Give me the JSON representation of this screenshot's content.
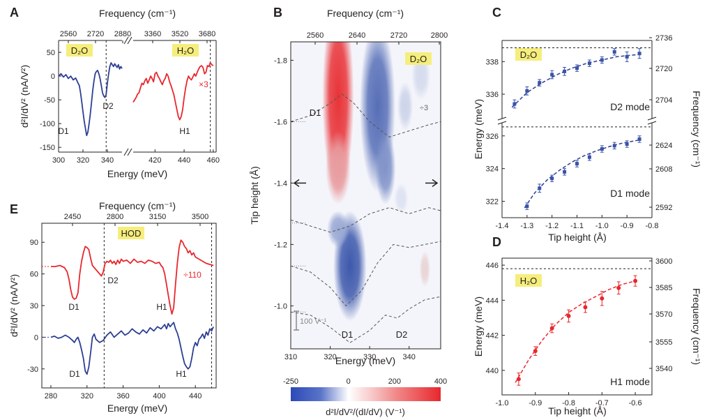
{
  "figure": {
    "panel_labels": [
      "A",
      "B",
      "C",
      "D",
      "E"
    ],
    "colors": {
      "blue": "#2c3e94",
      "red": "#e8272d",
      "marker_blue": "#3a52a8",
      "marker_red": "#e8272d",
      "highlight": "#f6ee7c",
      "text": "#231f20"
    }
  },
  "chart_data": [
    {
      "id": "A",
      "type": "line",
      "xlabel": "Energy (meV)",
      "ylabel": "d²I/dV² (nA/V²)",
      "top_label": "Frequency (cm⁻¹)",
      "x_ticks_left": [
        "300",
        "320",
        "340"
      ],
      "x_ticks_right": [
        "420",
        "440",
        "460"
      ],
      "y_ticks": [
        "50",
        "0",
        "-50",
        "-100",
        "-150"
      ],
      "top_ticks": [
        "2560",
        "2720",
        "2880",
        "3360",
        "3520",
        "3680"
      ],
      "ylim": [
        -160,
        75
      ],
      "xlim_left": [
        300,
        352
      ],
      "xlim_right": [
        405,
        462
      ],
      "labels": {
        "d2o": "D₂O",
        "h2o": "H₂O",
        "d1": "D1",
        "d2": "D2",
        "h1": "H1",
        "scale": "×3"
      },
      "series": [
        {
          "name": "D2O",
          "color": "#2c3e94",
          "x": [
            300,
            302,
            304,
            306,
            308,
            310,
            312,
            314,
            316,
            317,
            318,
            319,
            320,
            321,
            322,
            323,
            324,
            325,
            326,
            327,
            328,
            329,
            330,
            331,
            332,
            333,
            334,
            335,
            336,
            337,
            338,
            339,
            340,
            341,
            342,
            343,
            344,
            345,
            346,
            347,
            348,
            349,
            350,
            351,
            352
          ],
          "y": [
            0,
            5,
            -2,
            3,
            -5,
            0,
            -8,
            -4,
            -15,
            -20,
            -35,
            -55,
            -75,
            -95,
            -110,
            -125,
            -118,
            -100,
            -80,
            -55,
            -30,
            -10,
            5,
            10,
            12,
            5,
            -5,
            -20,
            -35,
            -42,
            -45,
            -38,
            -15,
            5,
            20,
            28,
            24,
            20,
            26,
            22,
            18,
            24,
            15,
            20,
            16
          ]
        },
        {
          "name": "H2O",
          "color": "#e8272d",
          "x": [
            405,
            406,
            407,
            408,
            409,
            410,
            411,
            412,
            413,
            414,
            415,
            416,
            417,
            418,
            419,
            420,
            421,
            422,
            423,
            424,
            425,
            426,
            427,
            428,
            429,
            430,
            431,
            432,
            433,
            434,
            435,
            436,
            437,
            438,
            439,
            440,
            441,
            442,
            443,
            444,
            445,
            446,
            447,
            448,
            449,
            450,
            451,
            452,
            453,
            454,
            455,
            456,
            457,
            458,
            459,
            460
          ],
          "y": [
            -55,
            -50,
            -45,
            -38,
            -35,
            -25,
            -15,
            -18,
            -10,
            -5,
            -15,
            -8,
            0,
            -5,
            -12,
            5,
            8,
            0,
            -5,
            -12,
            -18,
            -10,
            -5,
            5,
            0,
            -12,
            -20,
            -30,
            -40,
            -55,
            -70,
            -85,
            -92,
            -85,
            -70,
            -45,
            -25,
            -10,
            0,
            -5,
            -8,
            -2,
            5,
            0,
            8,
            15,
            20,
            22,
            18,
            5,
            8,
            22,
            20,
            28,
            24,
            22
          ]
        }
      ]
    },
    {
      "id": "B",
      "type": "heatmap",
      "title_top": "Frequency (cm⁻¹)",
      "xlabel": "Energy (meV)",
      "ylabel": "Tip height (Å)",
      "x_ticks": [
        "310",
        "320",
        "330",
        "340"
      ],
      "top_ticks": [
        "2560",
        "2640",
        "2720",
        "2800"
      ],
      "y_ticks": [
        "-1.8",
        "-1.6",
        "-1.4",
        "-1.2",
        "-1.0"
      ],
      "xlim": [
        310,
        348
      ],
      "ylim": [
        -0.86,
        -1.86
      ],
      "colorbar_label": "d²I/dV²/(dI/dV) (V⁻¹)",
      "colorbar_ticks": [
        "-250",
        "0",
        "200",
        "400"
      ],
      "colorbar_range": [
        -250,
        400
      ],
      "labels": {
        "d2o": "D₂O",
        "d1_top": "D1",
        "d1_bottom": "D1",
        "d2_bottom": "D2",
        "scale": "÷3",
        "scalebar": "100 V⁻¹"
      },
      "blobs": [
        {
          "cx": 322,
          "cy": -1.68,
          "rx": 4.0,
          "ry": 0.32,
          "value": 380
        },
        {
          "cx": 322,
          "cy": -1.45,
          "rx": 3.2,
          "ry": 0.12,
          "value": 180
        },
        {
          "cx": 332,
          "cy": -1.65,
          "rx": 4.5,
          "ry": 0.28,
          "value": -200
        },
        {
          "cx": 334,
          "cy": -1.45,
          "rx": 2.6,
          "ry": 0.12,
          "value": -150
        },
        {
          "cx": 325,
          "cy": -1.13,
          "rx": 4.2,
          "ry": 0.18,
          "value": -230
        },
        {
          "cx": 322,
          "cy": -1.25,
          "rx": 2.8,
          "ry": 0.06,
          "value": -120
        },
        {
          "cx": 343,
          "cy": -1.75,
          "rx": 2.4,
          "ry": 0.08,
          "value": -50
        },
        {
          "cx": 339,
          "cy": -1.65,
          "rx": 2.0,
          "ry": 0.08,
          "value": -60
        },
        {
          "cx": 344,
          "cy": -1.12,
          "rx": 1.4,
          "ry": 0.06,
          "value": 80
        },
        {
          "cx": 338,
          "cy": -1.35,
          "rx": 1.8,
          "ry": 0.05,
          "value": -40
        }
      ],
      "spectra_baselines": [
        -1.6,
        -1.27,
        -1.13,
        -0.98
      ],
      "arrow_height": -1.4
    },
    {
      "id": "C",
      "type": "scatter",
      "xlabel": "Tip height (Å)",
      "ylabel": "Energy (meV)",
      "y2label": "Frequency (cm⁻¹)",
      "x_ticks": [
        "-1.4",
        "-1.3",
        "-1.2",
        "-1.1",
        "-1.0",
        "-0.9",
        "-0.8"
      ],
      "xlim": [
        -1.4,
        -0.8
      ],
      "upper": {
        "ylim": [
          334.5,
          339.3
        ],
        "y_ticks": [
          "338",
          "336"
        ],
        "y2_ticks": [
          "2736",
          "2720",
          "2704"
        ],
        "dashed": 338.85,
        "label": "D2 mode",
        "x": [
          -1.35,
          -1.3,
          -1.25,
          -1.2,
          -1.15,
          -1.1,
          -1.05,
          -1.0,
          -0.95,
          -0.9,
          -0.85
        ],
        "y": [
          335.4,
          336.2,
          336.7,
          337.2,
          337.4,
          337.6,
          337.9,
          338.1,
          338.6,
          338.3,
          338.5
        ],
        "err": [
          0.25,
          0.25,
          0.2,
          0.25,
          0.25,
          0.2,
          0.2,
          0.2,
          0.2,
          0.3,
          0.3
        ]
      },
      "lower": {
        "ylim": [
          321.0,
          326.8
        ],
        "y_ticks": [
          "326",
          "324",
          "322"
        ],
        "y2_ticks": [
          "2624",
          "2608",
          "2592"
        ],
        "dashed": 326.55,
        "label": "D1 mode",
        "x": [
          -1.3,
          -1.25,
          -1.2,
          -1.15,
          -1.1,
          -1.05,
          -1.0,
          -0.95,
          -0.9,
          -0.85
        ],
        "y": [
          321.7,
          322.8,
          323.4,
          323.8,
          324.3,
          324.7,
          325.2,
          325.4,
          325.5,
          325.8
        ],
        "err": [
          0.2,
          0.25,
          0.2,
          0.2,
          0.2,
          0.2,
          0.2,
          0.2,
          0.2,
          0.2
        ]
      },
      "labels": {
        "d2o": "D₂O"
      }
    },
    {
      "id": "D",
      "type": "scatter",
      "xlabel": "Tip height (Å)",
      "ylabel": "Energy (meV)",
      "y2label": "Frequency (cm⁻¹)",
      "x_ticks": [
        "-1.0",
        "-0.9",
        "-0.8",
        "-0.7",
        "-0.6"
      ],
      "y_ticks": [
        "446",
        "444",
        "442",
        "440"
      ],
      "y2_ticks": [
        "3600",
        "3585",
        "3570",
        "3555",
        "3540"
      ],
      "xlim": [
        -1.0,
        -0.55
      ],
      "ylim": [
        438.6,
        446.4
      ],
      "dashed": 445.8,
      "label": "H1 mode",
      "labels": {
        "h2o": "H₂O"
      },
      "x": [
        -0.95,
        -0.9,
        -0.85,
        -0.8,
        -0.75,
        -0.7,
        -0.65,
        -0.6
      ],
      "y": [
        439.5,
        441.1,
        442.4,
        443.1,
        443.6,
        444.1,
        444.7,
        445.1
      ],
      "err": [
        0.35,
        0.25,
        0.25,
        0.35,
        0.3,
        0.4,
        0.35,
        0.3
      ]
    },
    {
      "id": "E",
      "type": "line",
      "xlabel": "Energy (meV)",
      "ylabel": "d²I/dV² (nA/V²)",
      "top_label": "Frequency (cm⁻¹)",
      "x_ticks": [
        "280",
        "320",
        "360",
        "400",
        "440"
      ],
      "top_ticks": [
        "2450",
        "2800",
        "3150",
        "3500"
      ],
      "y_ticks": [
        "90",
        "60",
        "30",
        "0",
        "-30"
      ],
      "xlim": [
        270,
        463
      ],
      "ylim": [
        -48,
        108
      ],
      "dashed_x": [
        339,
        458
      ],
      "labels": {
        "hod": "HOD",
        "d1_red": "D1",
        "d2_red": "D2",
        "h1_red": "H1",
        "d1_blue": "D1",
        "h1_blue": "H1",
        "scale": "÷110"
      },
      "series": [
        {
          "name": "HOD (÷110)",
          "color": "#e8272d",
          "x": [
            280,
            285,
            290,
            295,
            298,
            300,
            302,
            304,
            306,
            308,
            310,
            312,
            314,
            316,
            318,
            320,
            322,
            324,
            326,
            328,
            330,
            332,
            334,
            336,
            338,
            340,
            342,
            344,
            346,
            348,
            350,
            352,
            354,
            356,
            358,
            360,
            364,
            368,
            372,
            376,
            380,
            384,
            388,
            392,
            396,
            400,
            402,
            404,
            406,
            408,
            410,
            412,
            414,
            416,
            418,
            420,
            422,
            424,
            426,
            428,
            430,
            432,
            434,
            436,
            438,
            440,
            444,
            448,
            452,
            456,
            460
          ],
          "y": [
            67,
            67,
            68,
            66,
            62,
            55,
            45,
            38,
            36,
            37,
            42,
            60,
            72,
            80,
            86,
            85,
            83,
            75,
            68,
            66,
            64,
            62,
            60,
            58,
            62,
            70,
            72,
            71,
            73,
            70,
            72,
            69,
            73,
            70,
            74,
            72,
            73,
            70,
            74,
            71,
            72,
            70,
            73,
            72,
            70,
            71,
            68,
            66,
            60,
            50,
            40,
            30,
            22,
            28,
            50,
            70,
            85,
            92,
            90,
            86,
            84,
            80,
            82,
            78,
            80,
            76,
            74,
            72,
            70,
            69,
            68
          ]
        },
        {
          "name": "HOD blue",
          "color": "#2c3e94",
          "x": [
            280,
            284,
            288,
            292,
            296,
            300,
            304,
            306,
            308,
            310,
            312,
            314,
            316,
            318,
            320,
            322,
            324,
            326,
            328,
            330,
            334,
            338,
            342,
            346,
            350,
            354,
            358,
            362,
            366,
            370,
            374,
            378,
            382,
            386,
            390,
            394,
            398,
            402,
            406,
            408,
            410,
            412,
            414,
            416,
            418,
            420,
            422,
            424,
            426,
            428,
            430,
            432,
            434,
            436,
            438,
            440,
            442,
            444,
            446,
            448,
            450,
            452,
            454,
            456,
            458,
            460
          ],
          "y": [
            0,
            1,
            -1,
            0,
            2,
            0,
            -3,
            -5,
            -2,
            0,
            -5,
            -12,
            -20,
            -32,
            -35,
            -28,
            -15,
            0,
            3,
            -2,
            -5,
            -3,
            2,
            5,
            0,
            3,
            6,
            2,
            4,
            8,
            5,
            3,
            7,
            4,
            9,
            6,
            10,
            8,
            12,
            8,
            13,
            10,
            12,
            14,
            8,
            4,
            -2,
            -10,
            -18,
            -25,
            -28,
            -30,
            -28,
            -20,
            -10,
            -5,
            -8,
            -2,
            0,
            3,
            -1,
            5,
            2,
            8,
            6,
            10
          ]
        }
      ]
    }
  ]
}
